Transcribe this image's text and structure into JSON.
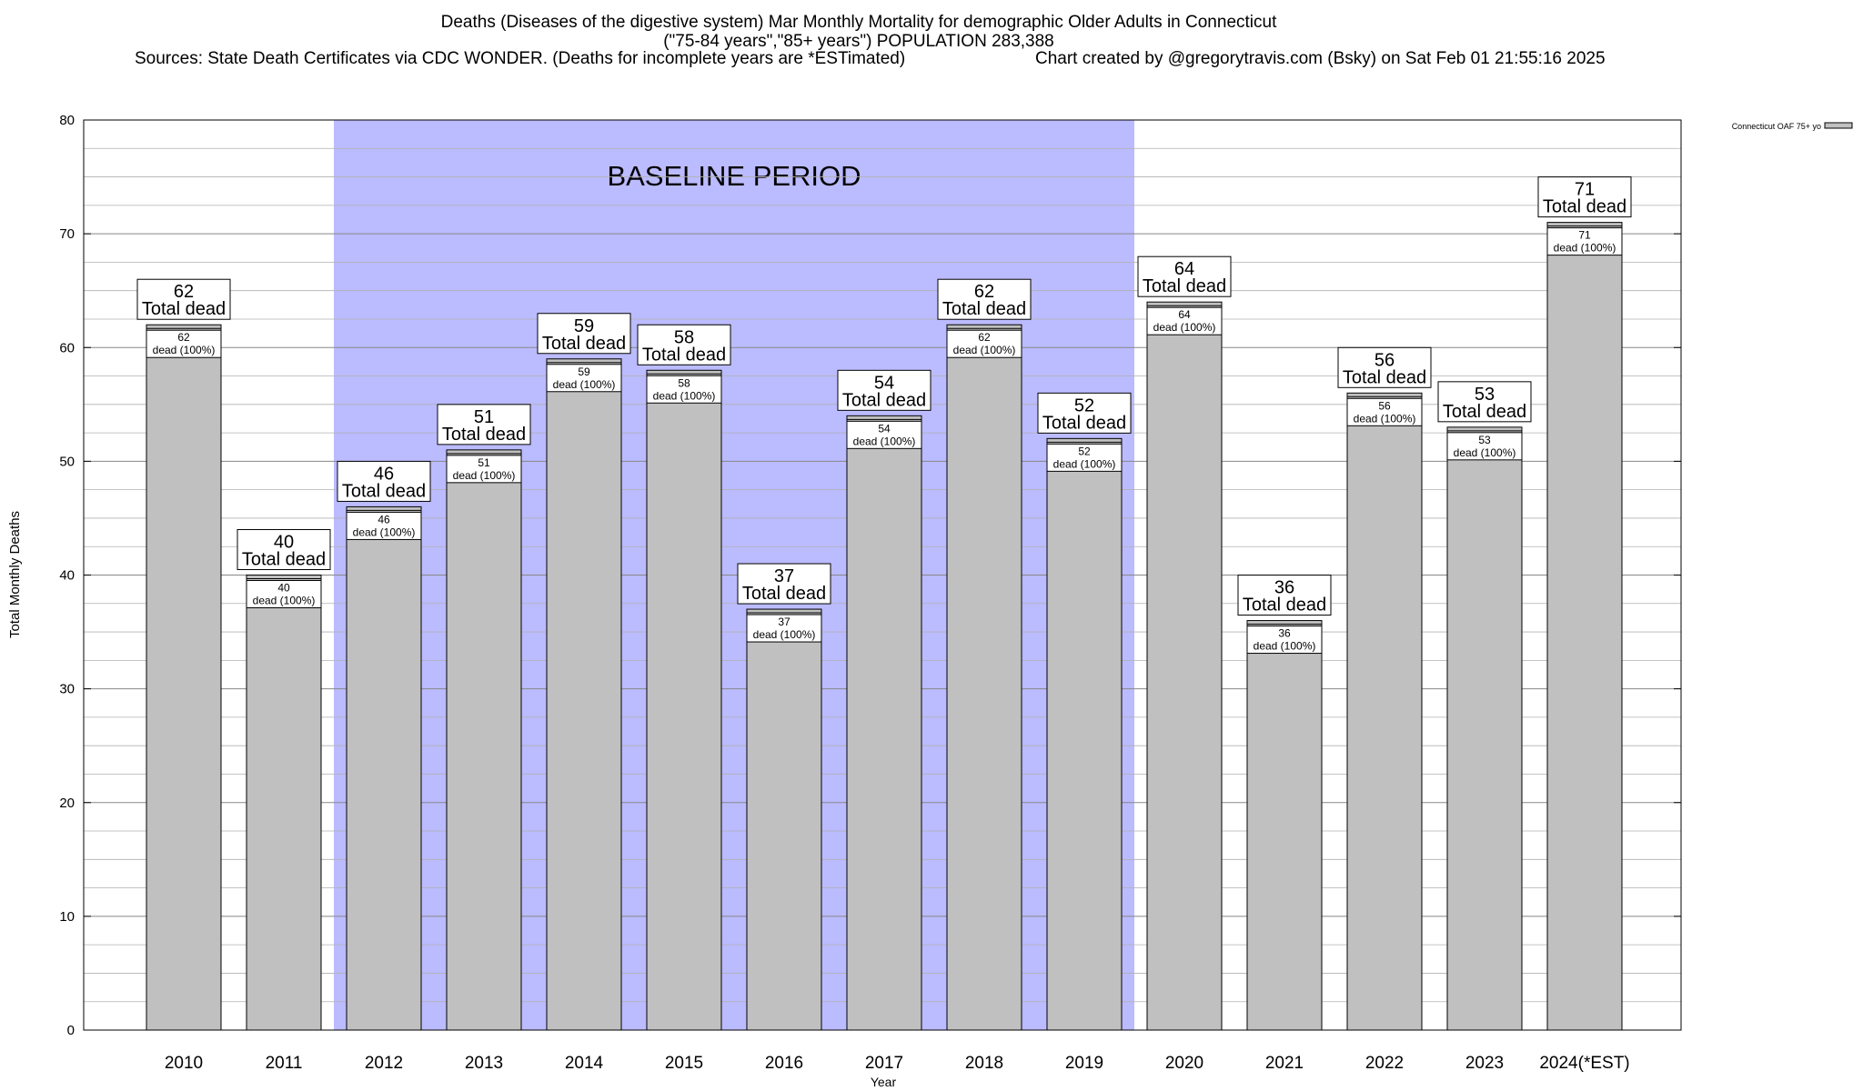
{
  "header": {
    "title_line1": "Deaths (Diseases of the digestive system) Mar Monthly Mortality for demographic Older Adults in Connecticut",
    "title_line2": "(\"75-84 years\",\"85+ years\") POPULATION 283,388",
    "sources": "Sources: State Death Certificates via CDC WONDER. (Deaths for incomplete years are *ESTimated)",
    "credit": "Chart created by @gregorytravis.com (Bsky) on Sat Feb 01 21:55:16 2025"
  },
  "chart_data": {
    "type": "bar",
    "categories": [
      "2010",
      "2011",
      "2012",
      "2013",
      "2014",
      "2015",
      "2016",
      "2017",
      "2018",
      "2019",
      "2020",
      "2021",
      "2022",
      "2023",
      "2024(*EST)"
    ],
    "series": [
      {
        "name": "Connecticut OAF 75+ yo",
        "values": [
          62,
          40,
          46,
          51,
          59,
          58,
          37,
          54,
          62,
          52,
          64,
          36,
          56,
          53,
          71
        ]
      }
    ],
    "total_label": "Total dead",
    "inner_label": "dead (100%)",
    "xlabel": "Year",
    "ylabel": "Total Monthly Deaths",
    "ylim": [
      0,
      80
    ],
    "yticks": [
      0,
      10,
      20,
      30,
      40,
      50,
      60,
      70,
      80
    ],
    "grid": true,
    "legend_position": "top-right",
    "baseline": {
      "label": "BASELINE PERIOD",
      "start": "2012",
      "end": "2019"
    },
    "colors": {
      "bar": "#c0c0c0",
      "baseline": "#bbbbff",
      "grid": "#b0b0b0",
      "frame": "#000000"
    }
  }
}
